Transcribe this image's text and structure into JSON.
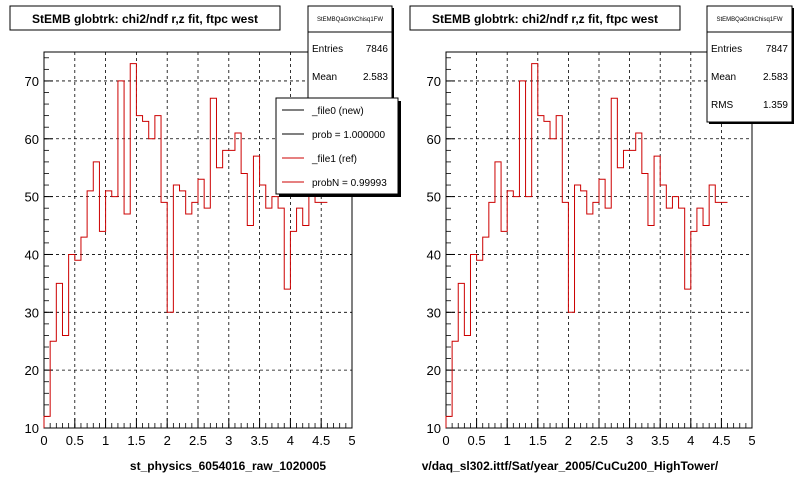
{
  "chart_data": [
    {
      "type": "histogram",
      "title": "StEMB globtrk: chi2/ndf r,z fit, ftpc west",
      "xlabel": "st_physics_6054016_raw_1020005",
      "xlim": [
        0,
        5
      ],
      "ylim": [
        10,
        75
      ],
      "x_ticks": [
        "0",
        "0.5",
        "1",
        "1.5",
        "2",
        "2.5",
        "3",
        "3.5",
        "4",
        "4.5",
        "5"
      ],
      "y_ticks": [
        "10",
        "20",
        "30",
        "40",
        "50",
        "60",
        "70"
      ],
      "grid": true,
      "bin_width": 0.1,
      "series": [
        {
          "color": "#cc0000",
          "values": [
            12,
            25,
            35,
            26,
            40,
            39,
            43,
            51,
            56,
            44,
            51,
            50,
            70,
            47,
            73,
            64,
            63,
            60,
            64,
            49,
            30,
            52,
            51,
            47,
            49,
            53,
            48,
            67,
            55,
            58,
            58,
            61,
            54,
            45,
            57,
            52,
            48,
            50,
            48,
            34,
            44,
            48,
            45,
            52,
            49,
            49
          ]
        }
      ],
      "stats": {
        "name": "StEMBQaGtrkChisq1FW",
        "entries_label": "Entries",
        "entries": "7846",
        "mean_label": "Mean",
        "mean": "2.583"
      },
      "legend": [
        "_file0 (new)",
        "prob = 1.000000",
        "_file1 (ref)",
        "probN = 0.99993"
      ]
    },
    {
      "type": "histogram",
      "title": "StEMB globtrk: chi2/ndf r,z fit, ftpc west",
      "xlabel": "v/daq_sl302.ittf/Sat/year_2005/CuCu200_HighTower/",
      "xlim": [
        0,
        5
      ],
      "ylim": [
        10,
        75
      ],
      "x_ticks": [
        "0",
        "0.5",
        "1",
        "1.5",
        "2",
        "2.5",
        "3",
        "3.5",
        "4",
        "4.5",
        "5"
      ],
      "y_ticks": [
        "10",
        "20",
        "30",
        "40",
        "50",
        "60",
        "70"
      ],
      "grid": true,
      "bin_width": 0.1,
      "series": [
        {
          "color": "#cc0000",
          "values": [
            12,
            25,
            35,
            26,
            40,
            39,
            43,
            49,
            56,
            44,
            51,
            50,
            70,
            50,
            73,
            64,
            63,
            60,
            64,
            49,
            30,
            52,
            51,
            47,
            49,
            53,
            48,
            67,
            55,
            58,
            58,
            61,
            54,
            45,
            57,
            52,
            48,
            50,
            48,
            34,
            44,
            48,
            45,
            52,
            49,
            49
          ]
        }
      ],
      "stats": {
        "name": "StEMBQaGtrkChisq1FW",
        "entries_label": "Entries",
        "entries": "7847",
        "mean_label": "Mean",
        "mean": "2.583",
        "rms_label": "RMS",
        "rms": "1.359"
      }
    }
  ]
}
